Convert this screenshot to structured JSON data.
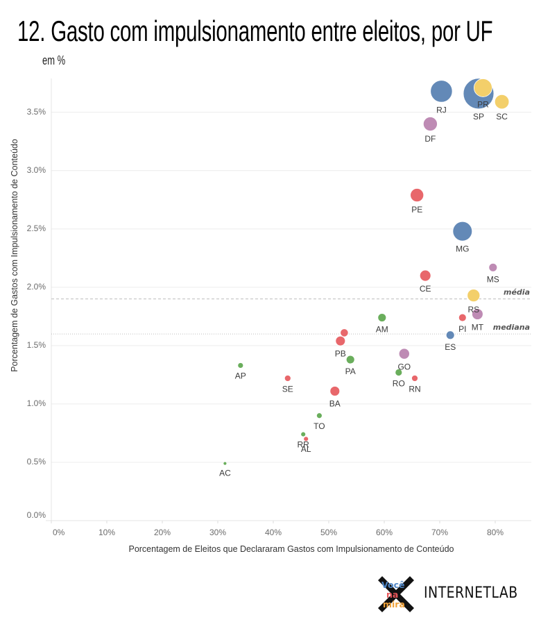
{
  "header": {
    "title": "12. Gasto com impulsionamento entre eleitos, por UF",
    "subtitle": "em %"
  },
  "chart_data": {
    "type": "scatter",
    "title": "12. Gasto com impulsionamento entre eleitos, por UF",
    "subtitle": "em %",
    "xlabel": "Porcentagem de Eleitos que Declararam Gastos com Impulsionamento de Conteúdo",
    "ylabel": "Porcentagem de Gastos com Impulsionamento de Conteúdo",
    "xlim": [
      0,
      86.5
    ],
    "ylim": [
      0,
      3.79
    ],
    "xticks": [
      0,
      10,
      20,
      30,
      40,
      50,
      60,
      70,
      80
    ],
    "xtick_labels": [
      "0%",
      "10%",
      "20%",
      "30%",
      "40%",
      "50%",
      "60%",
      "70%",
      "80%"
    ],
    "yticks": [
      0,
      0.5,
      1.0,
      1.5,
      2.0,
      2.5,
      3.0,
      3.5
    ],
    "ytick_labels": [
      "0.0%",
      "0.5%",
      "1.0%",
      "1.5%",
      "2.0%",
      "2.5%",
      "3.0%",
      "3.5%"
    ],
    "grid": true,
    "size_encoding": "relative bubble size (SP = 100)",
    "colors": {
      "blue": "#6389b7",
      "yellow": "#f3cf6a",
      "purple": "#be8bb4",
      "red": "#e8676b",
      "green": "#6aae5c"
    },
    "points": [
      {
        "label": "SP",
        "x": 77.0,
        "y": 3.66,
        "size": 100,
        "color": "blue"
      },
      {
        "label": "RJ",
        "x": 70.3,
        "y": 3.68,
        "size": 51,
        "color": "blue"
      },
      {
        "label": "MG",
        "x": 74.1,
        "y": 2.48,
        "size": 40,
        "color": "blue"
      },
      {
        "label": "PR",
        "x": 77.8,
        "y": 3.71,
        "size": 35,
        "color": "yellow"
      },
      {
        "label": "SC",
        "x": 81.2,
        "y": 3.59,
        "size": 22,
        "color": "yellow"
      },
      {
        "label": "DF",
        "x": 68.3,
        "y": 3.4,
        "size": 21,
        "color": "purple"
      },
      {
        "label": "PE",
        "x": 65.9,
        "y": 2.79,
        "size": 19,
        "color": "red"
      },
      {
        "label": "RS",
        "x": 76.1,
        "y": 1.93,
        "size": 17,
        "color": "yellow"
      },
      {
        "label": "CE",
        "x": 67.4,
        "y": 2.1,
        "size": 13,
        "color": "red"
      },
      {
        "label": "MT",
        "x": 76.8,
        "y": 1.77,
        "size": 13,
        "color": "purple"
      },
      {
        "label": "GO",
        "x": 63.6,
        "y": 1.43,
        "size": 12,
        "color": "purple"
      },
      {
        "label": "PB",
        "x": 52.1,
        "y": 1.54,
        "size": 10,
        "color": "red"
      },
      {
        "label": "BA",
        "x": 51.1,
        "y": 1.11,
        "size": 10,
        "color": "red"
      },
      {
        "label": "PA",
        "x": 53.9,
        "y": 1.38,
        "size": 7.4,
        "color": "green"
      },
      {
        "label": "AM",
        "x": 59.6,
        "y": 1.74,
        "size": 7.4,
        "color": "green"
      },
      {
        "label": "MS",
        "x": 79.6,
        "y": 2.17,
        "size": 7.4,
        "color": "purple"
      },
      {
        "label": "ES",
        "x": 71.9,
        "y": 1.59,
        "size": 7.4,
        "color": "blue"
      },
      {
        "label": "",
        "x": 52.8,
        "y": 1.61,
        "size": 6.7,
        "color": "red"
      },
      {
        "label": "PI",
        "x": 74.1,
        "y": 1.74,
        "size": 6.2,
        "color": "red"
      },
      {
        "label": "RO",
        "x": 62.6,
        "y": 1.27,
        "size": 5.2,
        "color": "green"
      },
      {
        "label": "RN",
        "x": 65.5,
        "y": 1.22,
        "size": 4.2,
        "color": "red"
      },
      {
        "label": "SE",
        "x": 42.6,
        "y": 1.22,
        "size": 4.2,
        "color": "red"
      },
      {
        "label": "AP",
        "x": 34.1,
        "y": 1.33,
        "size": 3.3,
        "color": "green"
      },
      {
        "label": "TO",
        "x": 48.3,
        "y": 0.9,
        "size": 3.3,
        "color": "green"
      },
      {
        "label": "RR",
        "x": 45.4,
        "y": 0.74,
        "size": 2.5,
        "color": "green"
      },
      {
        "label": "AL",
        "x": 45.9,
        "y": 0.7,
        "size": 2.5,
        "color": "red"
      },
      {
        "label": "AC",
        "x": 31.3,
        "y": 0.49,
        "size": 1.3,
        "color": "green"
      }
    ],
    "reference_lines": [
      {
        "label": "média",
        "y": 1.9,
        "style": "dashed"
      },
      {
        "label": "mediana",
        "y": 1.6,
        "style": "dotted"
      }
    ]
  },
  "logos": {
    "voce_na_mira": [
      "Você",
      "na",
      "mira"
    ],
    "internetlab": "INTERNETLAB"
  }
}
